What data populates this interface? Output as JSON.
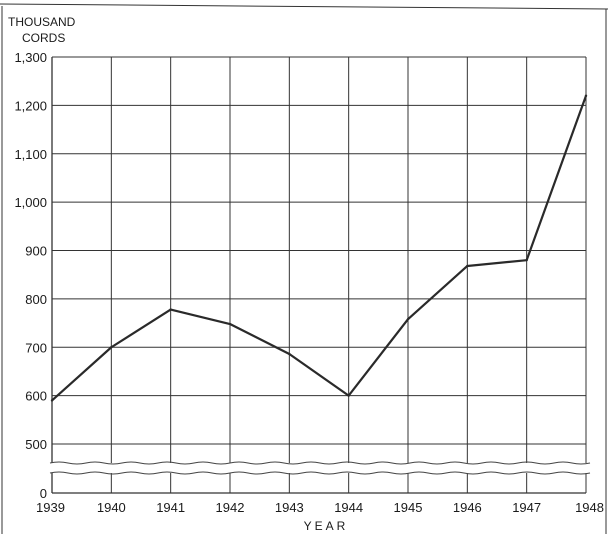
{
  "chart_data": {
    "type": "line",
    "title": "",
    "ylabel": "THOUSAND CORDS",
    "xlabel": "YEAR",
    "x": [
      1939,
      1940,
      1941,
      1942,
      1943,
      1944,
      1945,
      1946,
      1947,
      1948
    ],
    "x_tick_labels": [
      "1939",
      "1940",
      "1941",
      "1942",
      "1943",
      "1944",
      "1945",
      "1946",
      "1947",
      "1948"
    ],
    "series": [
      {
        "values": [
          590,
          700,
          778,
          748,
          686,
          600,
          758,
          868,
          880,
          1220
        ]
      }
    ],
    "ylim": [
      0,
      1300
    ],
    "y_ticks": [
      500,
      600,
      700,
      800,
      900,
      1000,
      1100,
      1200,
      1300
    ],
    "y_tick_labels": [
      "500",
      "600",
      "700",
      "800",
      "900",
      "1,000",
      "1,100",
      "1,200",
      "1,300"
    ],
    "y_zero_label": "0",
    "axis_break": true,
    "grid": true,
    "line_color": "#2a2a2a",
    "grid_color": "#333333"
  }
}
